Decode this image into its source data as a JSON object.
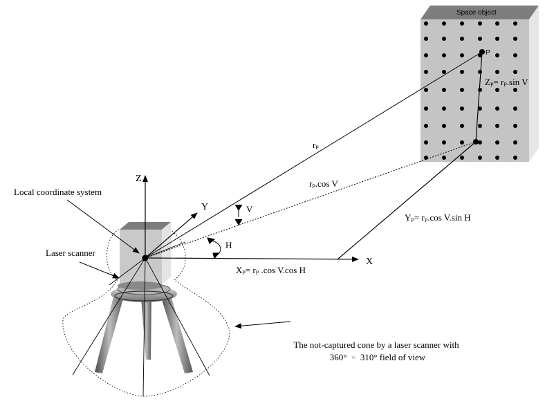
{
  "object_label": "Space object",
  "point_label": "P",
  "z_axis": "Z",
  "y_axis": "Y",
  "x_axis": "X",
  "r_label": "r",
  "r_sub": "P",
  "r_cos_v": {
    "r": "r",
    "sub": "P",
    "rest": ".cos V"
  },
  "v_angle": "V",
  "h_angle": "H",
  "zp_formula": {
    "z": "Z",
    "zsub": "P",
    "eq": "= r",
    "rsub": "P",
    "rest": ".sin V"
  },
  "yp_formula": {
    "y": "Y",
    "ysub": "P",
    "eq": "= r",
    "rsub": "P",
    "rest": ".cos V.sin H"
  },
  "xp_formula": {
    "x": "X",
    "xsub": "P",
    "eq": "= r",
    "rsub": "P",
    "rest": " .cos V.cos H"
  },
  "local_cs_label": "Local coordinate system",
  "scanner_label": "Laser scanner",
  "cone_caption_line1": "The not-captured cone by a laser scanner with",
  "cone_caption_line2a": "360°",
  "cone_caption_times": "×",
  "cone_caption_line2b": "310° field of view",
  "colors": {
    "face_front": "#c4c4c4",
    "face_side": "#e6e6e6",
    "face_top": "#7d7d7d",
    "ink": "#000000"
  }
}
